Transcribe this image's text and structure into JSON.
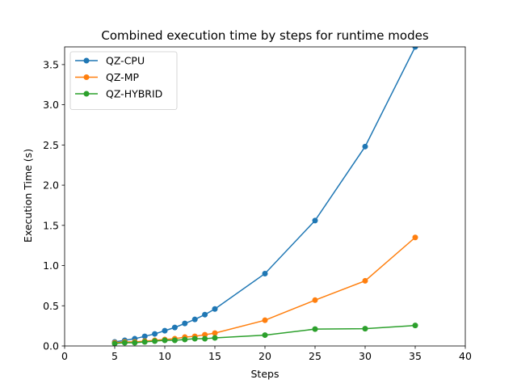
{
  "chart_data": {
    "type": "line",
    "title": "Combined execution time by steps for runtime modes",
    "xlabel": "Steps",
    "ylabel": "Execution Time (s)",
    "xlim": [
      0,
      40
    ],
    "ylim": [
      0,
      3.72
    ],
    "xticks": [
      "0",
      "5",
      "10",
      "15",
      "20",
      "25",
      "30",
      "35",
      "40"
    ],
    "yticks": [
      "0.0",
      "0.5",
      "1.0",
      "1.5",
      "2.0",
      "2.5",
      "3.0",
      "3.5"
    ],
    "grid": false,
    "legend_position": "top-left",
    "x": [
      5,
      6,
      7,
      8,
      9,
      10,
      11,
      12,
      13,
      14,
      15,
      20,
      25,
      30,
      35
    ],
    "series": [
      {
        "name": "QZ-CPU",
        "color": "#1f77b4",
        "values": [
          0.05,
          0.07,
          0.09,
          0.12,
          0.15,
          0.19,
          0.23,
          0.28,
          0.33,
          0.39,
          0.46,
          0.9,
          1.56,
          2.48,
          3.72
        ]
      },
      {
        "name": "QZ-MP",
        "color": "#ff7f0e",
        "values": [
          0.04,
          0.05,
          0.05,
          0.06,
          0.07,
          0.08,
          0.09,
          0.11,
          0.12,
          0.14,
          0.16,
          0.32,
          0.57,
          0.81,
          1.35
        ]
      },
      {
        "name": "QZ-HYBRID",
        "color": "#2ca02c",
        "values": [
          0.03,
          0.04,
          0.04,
          0.05,
          0.06,
          0.07,
          0.07,
          0.08,
          0.09,
          0.09,
          0.1,
          0.135,
          0.21,
          0.215,
          0.255
        ]
      }
    ]
  }
}
